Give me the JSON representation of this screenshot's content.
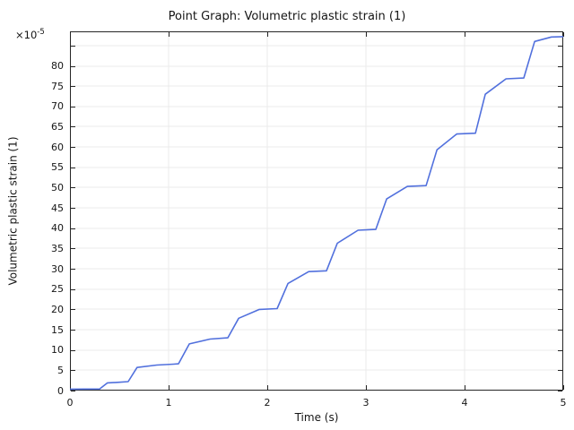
{
  "window": {
    "background": "#ffffff"
  },
  "chart_data": {
    "type": "line",
    "title": "Point Graph: Volumetric plastic strain (1)",
    "xlabel": "Time (s)",
    "ylabel": "Volumetric plastic strain (1)",
    "y_multiplier_base": "×10",
    "y_multiplier_exp": "-5",
    "xlim": [
      0,
      5
    ],
    "ylim": [
      0,
      88.5
    ],
    "x_tick_values": [
      0,
      1,
      2,
      3,
      4,
      5
    ],
    "x_tick_labels": [
      "0",
      "1",
      "2",
      "3",
      "4",
      "5"
    ],
    "y_tick_values": [
      0,
      5,
      10,
      15,
      20,
      25,
      30,
      35,
      40,
      45,
      50,
      55,
      60,
      65,
      70,
      75,
      80
    ],
    "y_tick_labels": [
      "0",
      "5",
      "10",
      "15",
      "20",
      "25",
      "30",
      "35",
      "40",
      "45",
      "50",
      "55",
      "60",
      "65",
      "70",
      "75",
      "80"
    ],
    "grid": true,
    "grid_step": 5,
    "legend": "none",
    "series": [
      {
        "name": "Volumetric plastic strain (1)",
        "units_multiplier": "1e-5",
        "color": "#5170dd",
        "points": [
          [
            0.0,
            0.35
          ],
          [
            0.3,
            0.4
          ],
          [
            0.38,
            1.9
          ],
          [
            0.5,
            2.05
          ],
          [
            0.59,
            2.2
          ],
          [
            0.68,
            5.7
          ],
          [
            0.88,
            6.3
          ],
          [
            1.05,
            6.5
          ],
          [
            1.1,
            6.6
          ],
          [
            1.21,
            11.5
          ],
          [
            1.42,
            12.7
          ],
          [
            1.6,
            13.0
          ],
          [
            1.71,
            17.8
          ],
          [
            1.92,
            20.0
          ],
          [
            2.1,
            20.2
          ],
          [
            2.21,
            26.4
          ],
          [
            2.42,
            29.3
          ],
          [
            2.6,
            29.5
          ],
          [
            2.71,
            36.3
          ],
          [
            2.92,
            39.5
          ],
          [
            3.1,
            39.7
          ],
          [
            3.21,
            47.2
          ],
          [
            3.42,
            50.3
          ],
          [
            3.61,
            50.5
          ],
          [
            3.72,
            59.3
          ],
          [
            3.92,
            63.2
          ],
          [
            4.11,
            63.4
          ],
          [
            4.21,
            73.0
          ],
          [
            4.42,
            76.8
          ],
          [
            4.6,
            77.0
          ],
          [
            4.71,
            86.0
          ],
          [
            4.88,
            87.1
          ],
          [
            5.0,
            87.2
          ]
        ]
      }
    ]
  },
  "colors": {
    "frame": "#262626",
    "grid": "#ebebeb",
    "text": "#151515",
    "line": "#5170dd"
  }
}
